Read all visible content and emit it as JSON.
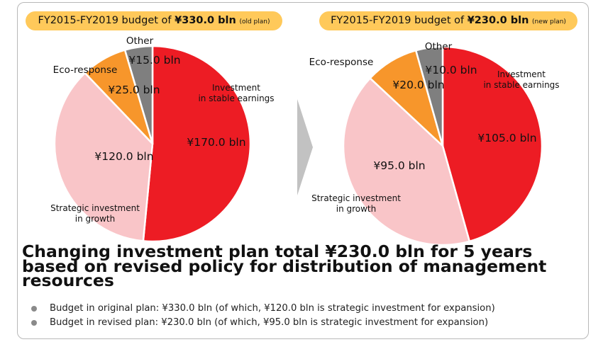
{
  "chart_data": [
    {
      "type": "pie",
      "title": {
        "prefix": "FY2015-FY2019 budget of ",
        "amount": "¥330.0 bln",
        "note": "(old plan)"
      },
      "slices": [
        {
          "name": "Investment in stable earnings",
          "name_lines": [
            "Investment",
            "in stable earnings"
          ],
          "value": 170.0,
          "value_label": "¥170.0 bln",
          "color": "#ed1c24"
        },
        {
          "name": "Strategic investment in growth",
          "name_lines": [
            "Strategic investment",
            "in growth"
          ],
          "value": 120.0,
          "value_label": "¥120.0 bln",
          "color": "#f9c5c8"
        },
        {
          "name": "Eco-response",
          "name_lines": [
            "Eco-response"
          ],
          "value": 25.0,
          "value_label": "¥25.0 bln",
          "color": "#f7962b"
        },
        {
          "name": "Other",
          "name_lines": [
            "Other"
          ],
          "value": 15.0,
          "value_label": "¥15.0 bln",
          "color": "#7f7f7f"
        }
      ]
    },
    {
      "type": "pie",
      "title": {
        "prefix": "FY2015-FY2019 budget of ",
        "amount": "¥230.0 bln",
        "note": "(new plan)"
      },
      "slices": [
        {
          "name": "Investment in stable earnings",
          "name_lines": [
            "Investment",
            "in stable earnings"
          ],
          "value": 105.0,
          "value_label": "¥105.0 bln",
          "color": "#ed1c24"
        },
        {
          "name": "Strategic investment in growth",
          "name_lines": [
            "Strategic investment",
            "in growth"
          ],
          "value": 95.0,
          "value_label": "¥95.0 bln",
          "color": "#f9c5c8"
        },
        {
          "name": "Eco-response",
          "name_lines": [
            "Eco-response"
          ],
          "value": 20.0,
          "value_label": "¥20.0 bln",
          "color": "#f7962b"
        },
        {
          "name": "Other",
          "name_lines": [
            "Other"
          ],
          "value": 10.0,
          "value_label": "¥10.0 bln",
          "color": "#7f7f7f"
        }
      ]
    }
  ],
  "headline": "Changing investment plan total ¥230.0 bln for 5 years based on revised policy for distribution of management resources",
  "notes": [
    "Budget in original plan: ¥330.0 bln (of which, ¥120.0 bln is strategic investment for expansion)",
    "Budget in revised plan: ¥230.0 bln (of which, ¥95.0 bln is strategic investment for expansion)"
  ]
}
